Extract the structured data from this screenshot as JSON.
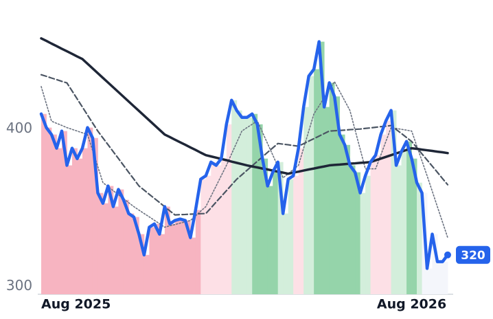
{
  "chart_data": {
    "type": "line",
    "categories": [
      "Aug 2025",
      null,
      null,
      null,
      null,
      null,
      null,
      null,
      null,
      null,
      null,
      null,
      null,
      null,
      null,
      null,
      null,
      null,
      null,
      null,
      null,
      null,
      null,
      null,
      null,
      null,
      null,
      null,
      null,
      null,
      null,
      null,
      null,
      null,
      null,
      null,
      null,
      null,
      null,
      null,
      null,
      null,
      null,
      null,
      null,
      null,
      null,
      null,
      null,
      null,
      null,
      null,
      null,
      null,
      null,
      null,
      null,
      null,
      null,
      null,
      null,
      null,
      null,
      null,
      null,
      null,
      null,
      null,
      null,
      null,
      null,
      null,
      "Aug 2026",
      null,
      null,
      null,
      null,
      null,
      null,
      null
    ],
    "ylim": [
      295,
      475
    ],
    "yticks": [
      300,
      400
    ],
    "grid": false,
    "series": [
      {
        "color": "#2563eb",
        "dash": "solid",
        "width": 4.5,
        "end_label": true,
        "values": [
          409.6,
          400.9,
          396.5,
          387.8,
          398.7,
          376.9,
          387.8,
          381.2,
          387.8,
          400.9,
          394.3,
          359.4,
          352.8,
          363.8,
          350.7,
          361.6,
          355,
          346.3,
          344.1,
          333.2,
          320,
          337.6,
          339.7,
          333.2,
          350.7,
          339.7,
          341.9,
          342.8,
          341.9,
          331,
          348.5,
          368.1,
          370.3,
          379,
          376.9,
          381.2,
          403,
          418.3,
          411.8,
          407.4,
          407.4,
          409.6,
          403,
          381.2,
          363.8,
          372.5,
          379,
          346.3,
          368.1,
          370.3,
          387.8,
          414,
          433.6,
          438,
          455.5,
          414,
          429.4,
          420.7,
          396.5,
          389.9,
          376.9,
          372.5,
          359.4,
          370.3,
          379,
          383.4,
          396.5,
          405.2,
          411.8,
          376.9,
          385.6,
          392.1,
          381.2,
          365.9,
          359.4,
          311.4,
          333.2,
          315.7,
          315.7,
          320
        ]
      },
      {
        "color": "#1e2637",
        "dash": "solid",
        "width": 3.5,
        "values": [
          457.6,
          456,
          454.3,
          452.7,
          451,
          449.4,
          447.8,
          446.1,
          444.5,
          441.5,
          438.5,
          435.5,
          432.5,
          429.5,
          426.5,
          423.5,
          420.5,
          417.5,
          414.5,
          411.5,
          408.5,
          405.5,
          402.5,
          399.5,
          396.5,
          394.9,
          393.2,
          391.6,
          390,
          388.3,
          386.7,
          385,
          383.4,
          382.6,
          381.8,
          381,
          380.2,
          379.3,
          378.5,
          377.7,
          376.9,
          376.2,
          375.6,
          374.9,
          374.3,
          373.6,
          372.9,
          372.3,
          371.6,
          372.3,
          372.9,
          373.6,
          374.3,
          374.9,
          375.6,
          376.2,
          376.9,
          377.2,
          377.4,
          377.7,
          378,
          378.2,
          378.5,
          378.7,
          379,
          380.1,
          381.2,
          382.3,
          383.4,
          384.5,
          385.6,
          386.7,
          387.8,
          387.4,
          386.9,
          386.5,
          386.1,
          385.6,
          385.2,
          384.7
        ]
      },
      {
        "color": "#4b5563",
        "dash": "dashed",
        "width": 2.2,
        "values": [
          434.5,
          433.5,
          432.4,
          431.4,
          430.3,
          429.3,
          424.2,
          419.1,
          414,
          408.9,
          403.8,
          398.7,
          394.3,
          390,
          385.6,
          381.3,
          376.9,
          372.5,
          368.2,
          363.8,
          361.2,
          358.5,
          355.9,
          353.3,
          350.6,
          348,
          345.4,
          345.6,
          345.7,
          345.9,
          346,
          346.2,
          346.3,
          349.9,
          353.6,
          357.2,
          360.8,
          364.5,
          368.1,
          370.9,
          373.8,
          376.6,
          379.5,
          382.3,
          385.2,
          388,
          390.8,
          390.4,
          390,
          389.5,
          389.1,
          390.7,
          392.3,
          393.9,
          395.5,
          397.1,
          398.7,
          398.9,
          399.1,
          399.3,
          399.6,
          399.8,
          400,
          400.4,
          400.7,
          401.1,
          401.5,
          401.8,
          402.2,
          399.7,
          397.2,
          394.6,
          392.1,
          388.2,
          384.2,
          380.3,
          376.4,
          372.5,
          368.5,
          364.6
        ]
      },
      {
        "color": "#6b7280",
        "dash": "dotted",
        "width": 1.6,
        "values": [
          427,
          416,
          405,
          403.6,
          402.3,
          400.9,
          399.8,
          398.7,
          397.6,
          396.5,
          386.3,
          376.1,
          365.9,
          363.4,
          360.8,
          358.3,
          355.8,
          353.2,
          350.7,
          348.5,
          346.3,
          344.2,
          342,
          339.8,
          337.6,
          338.5,
          339.3,
          340.2,
          341,
          341.9,
          344.8,
          347.8,
          350.7,
          357.3,
          363.8,
          370.4,
          376.9,
          384.2,
          391.4,
          398.7,
          400.9,
          403,
          405.2,
          398,
          390.7,
          383.5,
          376.2,
          369,
          371.6,
          374.3,
          376.9,
          387.8,
          398.7,
          409.6,
          414.7,
          419.9,
          425,
          430.1,
          424,
          417.9,
          411.8,
          399.4,
          387.1,
          374.7,
          374.7,
          374.7,
          383.4,
          392.2,
          400.9,
          400.4,
          399.8,
          399.3,
          398.7,
          389.2,
          379.8,
          370.3,
          360.5,
          350.6,
          340.8,
          331
        ]
      }
    ],
    "regimes": [
      {
        "from": 0,
        "to": 31,
        "color": "#f7b4c1"
      },
      {
        "from": 31,
        "to": 37,
        "color": "#fde0e6"
      },
      {
        "from": 37,
        "to": 41,
        "color": "#d3eedb"
      },
      {
        "from": 41,
        "to": 46,
        "color": "#95d4aa"
      },
      {
        "from": 46,
        "to": 49,
        "color": "#d3eedb"
      },
      {
        "from": 49,
        "to": 51,
        "color": "#fde0e6"
      },
      {
        "from": 51,
        "to": 53,
        "color": "#d3eedb"
      },
      {
        "from": 53,
        "to": 62,
        "color": "#95d4aa"
      },
      {
        "from": 62,
        "to": 64,
        "color": "#d3eedb"
      },
      {
        "from": 64,
        "to": 68,
        "color": "#fde0e6"
      },
      {
        "from": 68,
        "to": 71,
        "color": "#d3eedb"
      },
      {
        "from": 71,
        "to": 73,
        "color": "#95d4aa"
      },
      {
        "from": 73,
        "to": 74,
        "color": "#d3eedb"
      },
      {
        "from": 74,
        "to": 80,
        "color": "#f4f6fb"
      }
    ]
  }
}
